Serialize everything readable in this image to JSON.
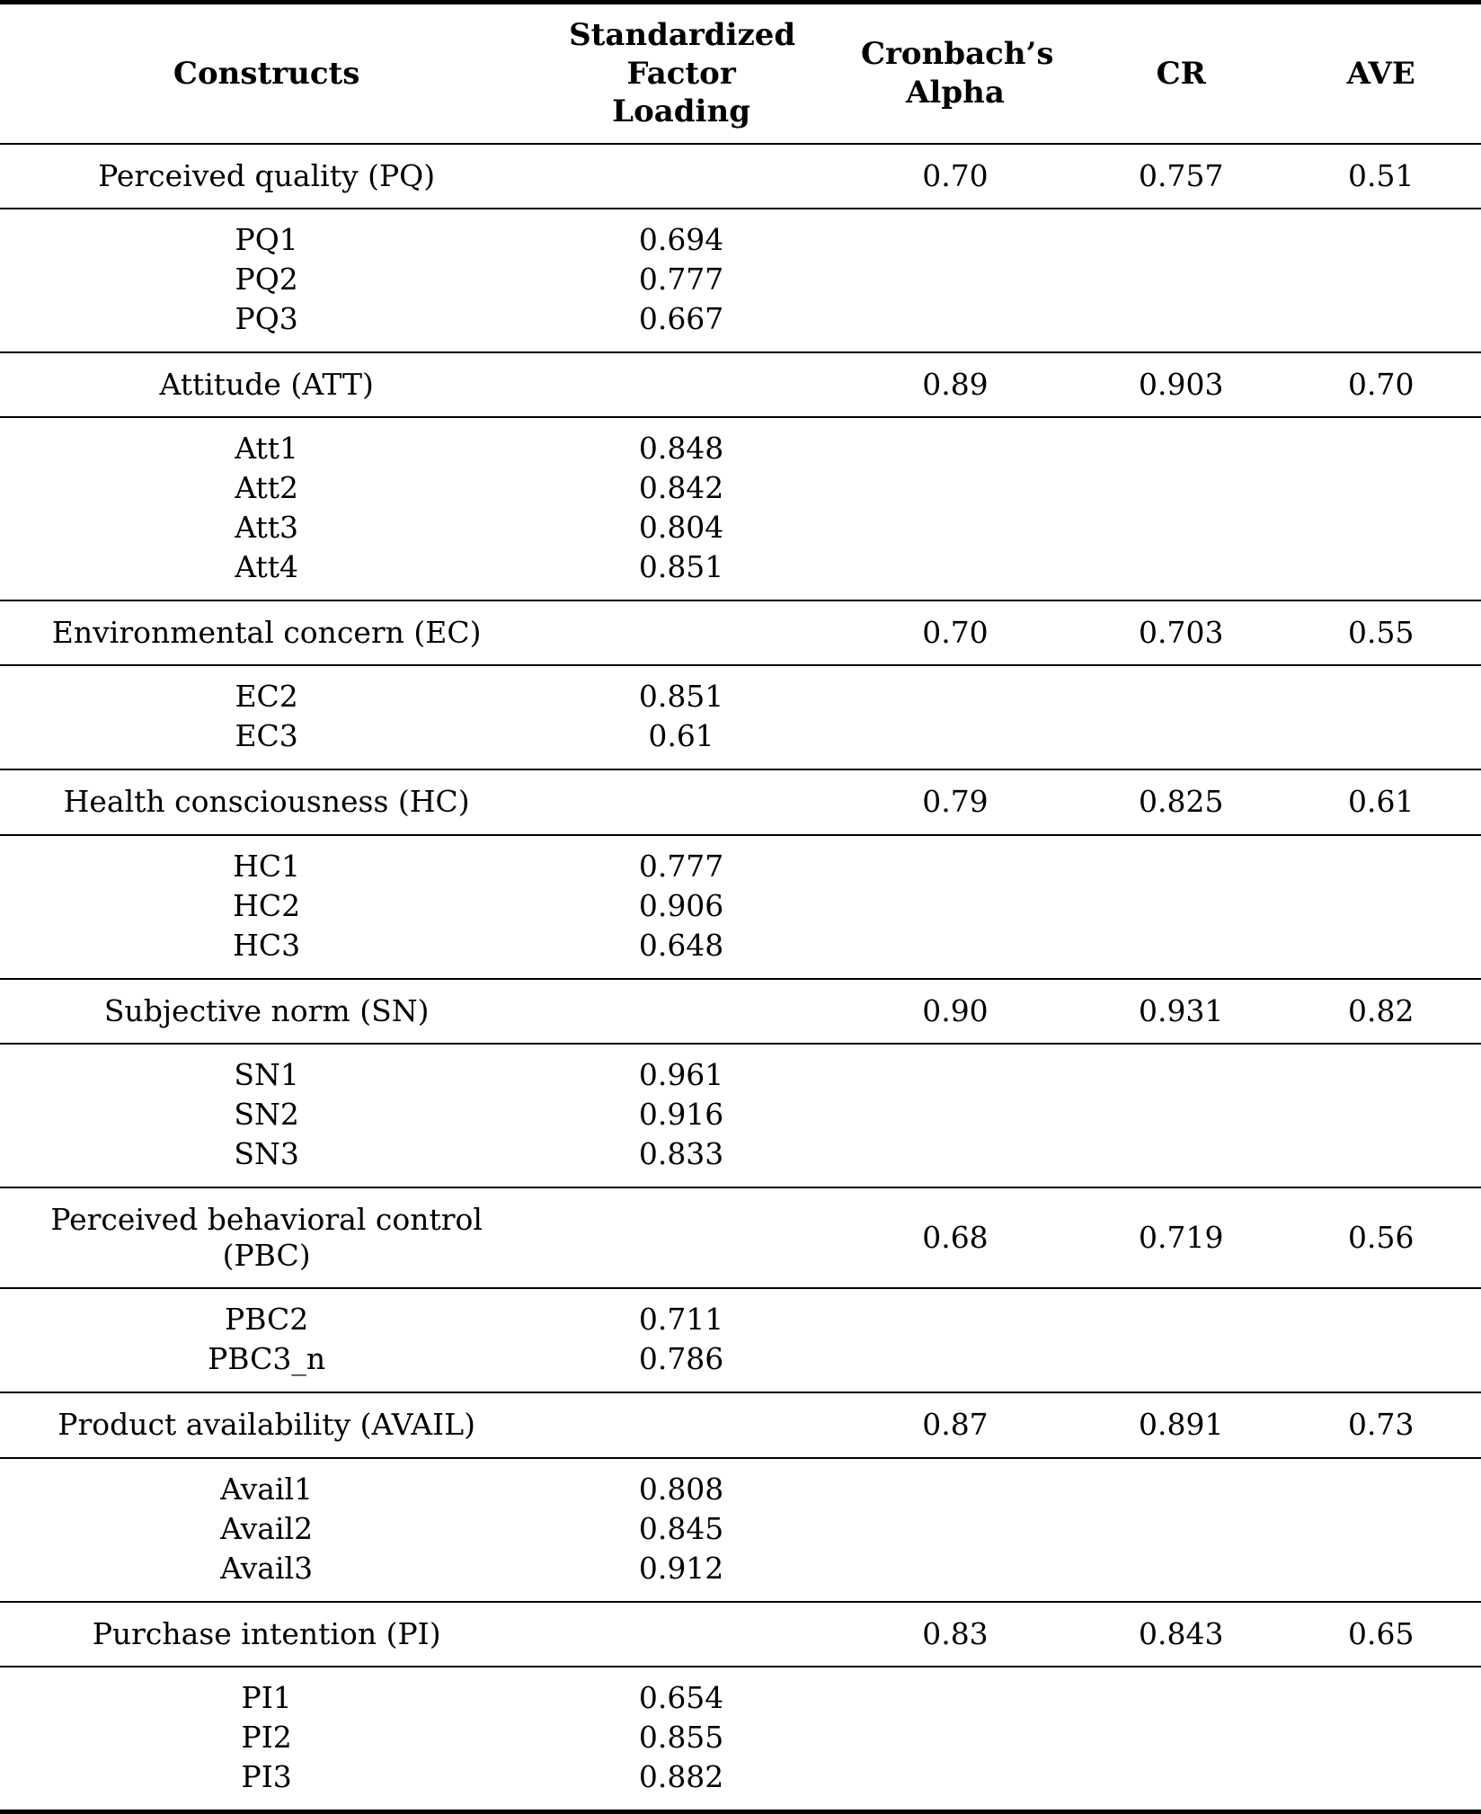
{
  "table": {
    "columns": [
      "Constructs",
      "Standardized Factor Loading",
      "Cronbach’s Alpha",
      "CR",
      "AVE"
    ],
    "sections": [
      {
        "construct": "Perceived quality (PQ)",
        "alpha": "0.70",
        "cr": "0.757",
        "ave": "0.51",
        "items": [
          {
            "label": "PQ1",
            "loading": "0.694"
          },
          {
            "label": "PQ2",
            "loading": "0.777"
          },
          {
            "label": "PQ3",
            "loading": "0.667"
          }
        ]
      },
      {
        "construct": "Attitude (ATT)",
        "alpha": "0.89",
        "cr": "0.903",
        "ave": "0.70",
        "items": [
          {
            "label": "Att1",
            "loading": "0.848"
          },
          {
            "label": "Att2",
            "loading": "0.842"
          },
          {
            "label": "Att3",
            "loading": "0.804"
          },
          {
            "label": "Att4",
            "loading": "0.851"
          }
        ]
      },
      {
        "construct": "Environmental concern (EC)",
        "alpha": "0.70",
        "cr": "0.703",
        "ave": "0.55",
        "items": [
          {
            "label": "EC2",
            "loading": "0.851"
          },
          {
            "label": "EC3",
            "loading": "0.61"
          }
        ]
      },
      {
        "construct": "Health consciousness (HC)",
        "alpha": "0.79",
        "cr": "0.825",
        "ave": "0.61",
        "items": [
          {
            "label": "HC1",
            "loading": "0.777"
          },
          {
            "label": "HC2",
            "loading": "0.906"
          },
          {
            "label": "HC3",
            "loading": "0.648"
          }
        ]
      },
      {
        "construct": "Subjective norm (SN)",
        "alpha": "0.90",
        "cr": "0.931",
        "ave": "0.82",
        "items": [
          {
            "label": "SN1",
            "loading": "0.961"
          },
          {
            "label": "SN2",
            "loading": "0.916"
          },
          {
            "label": "SN3",
            "loading": "0.833"
          }
        ]
      },
      {
        "construct": "Perceived behavioral control (PBC)",
        "alpha": "0.68",
        "cr": "0.719",
        "ave": "0.56",
        "items": [
          {
            "label": "PBC2",
            "loading": "0.711"
          },
          {
            "label": "PBC3_n",
            "loading": "0.786"
          }
        ]
      },
      {
        "construct": "Product availability (AVAIL)",
        "alpha": "0.87",
        "cr": "0.891",
        "ave": "0.73",
        "items": [
          {
            "label": "Avail1",
            "loading": "0.808"
          },
          {
            "label": "Avail2",
            "loading": "0.845"
          },
          {
            "label": "Avail3",
            "loading": "0.912"
          }
        ]
      },
      {
        "construct": "Purchase intention (PI)",
        "alpha": "0.83",
        "cr": "0.843",
        "ave": "0.65",
        "items": [
          {
            "label": "PI1",
            "loading": "0.654"
          },
          {
            "label": "PI2",
            "loading": "0.855"
          },
          {
            "label": "PI3",
            "loading": "0.882"
          }
        ]
      }
    ]
  }
}
